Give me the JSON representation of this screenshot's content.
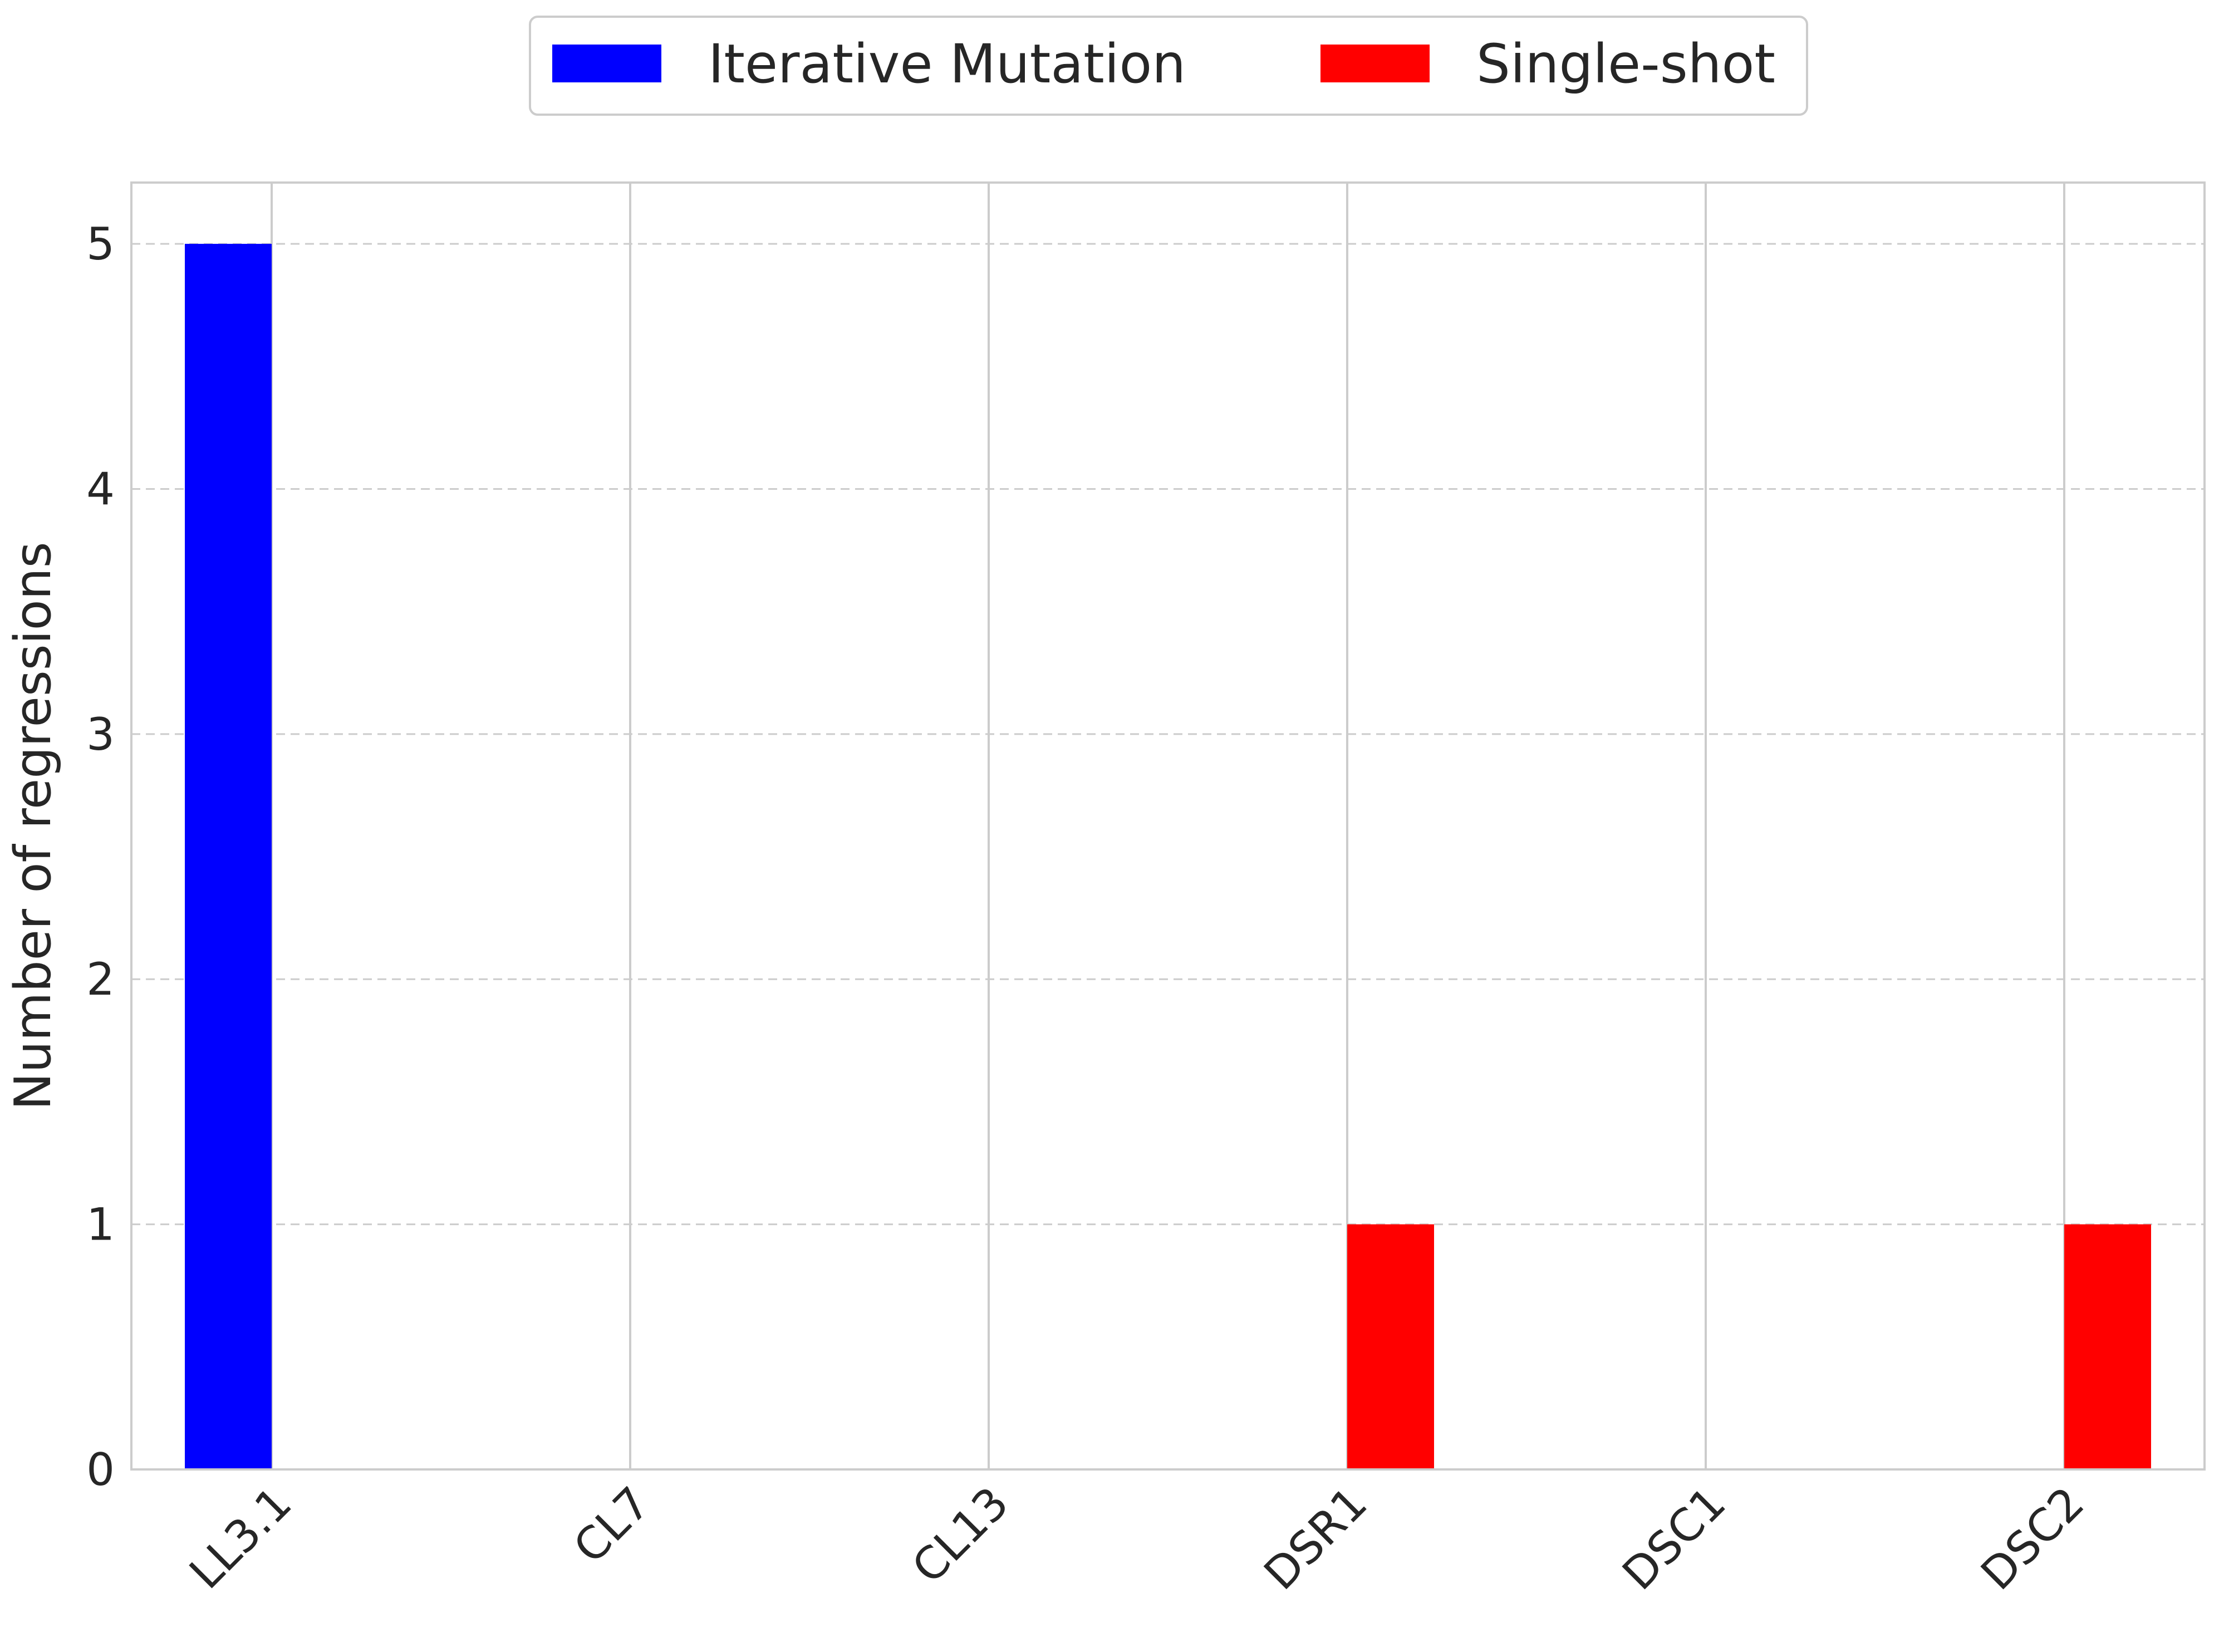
{
  "chart_data": {
    "type": "bar",
    "categories": [
      "LL3.1",
      "CL7",
      "CL13",
      "DSR1",
      "DSC1",
      "DSC2"
    ],
    "series": [
      {
        "name": "Iterative Mutation",
        "color": "#0000ff",
        "values": [
          5,
          0,
          0,
          0,
          0,
          0
        ]
      },
      {
        "name": "Single-shot",
        "color": "#ff0000",
        "values": [
          0,
          0,
          0,
          1,
          0,
          1
        ]
      }
    ],
    "title": "",
    "xlabel": "",
    "ylabel": "Number of regressions",
    "ylim": [
      0,
      5.25
    ],
    "yticks": [
      "0",
      "1",
      "2",
      "3",
      "4",
      "5"
    ],
    "legend_position": "top-center",
    "grid": true
  }
}
